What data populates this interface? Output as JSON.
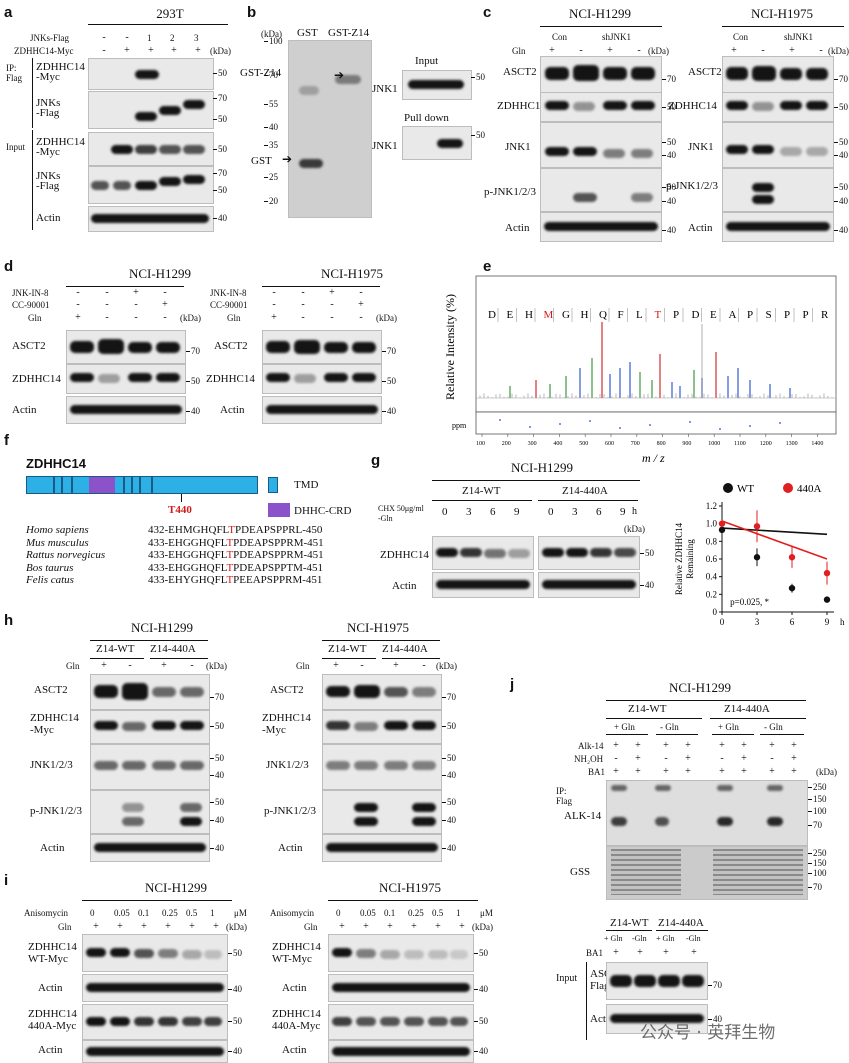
{
  "panels": {
    "a": {
      "label": "a",
      "cell": "293T",
      "rows": [
        "JNKs-Flag",
        "ZDHHC14-Myc"
      ],
      "lanes": [
        "1",
        "2",
        "3"
      ],
      "unit": "(kDa)",
      "ip": "IP:\nFlag",
      "input": "Input",
      "blots": [
        "ZDHHC14\n-Myc",
        "JNKs\n-Flag",
        "ZDHHC14\n-Myc",
        "JNKs\n-Flag",
        "Actin"
      ],
      "mw": [
        "50",
        "70",
        "50",
        "50",
        "70",
        "50",
        "40"
      ]
    },
    "b": {
      "label": "b",
      "unit": "(kDa)",
      "lanes": [
        "GST",
        "GST-Z14"
      ],
      "ladder": [
        "100",
        "70",
        "55",
        "40",
        "35",
        "25",
        "20"
      ],
      "markers": [
        "GST-Z14",
        "GST"
      ],
      "input": "Input",
      "pulldown": "Pull down",
      "target": "JNK1",
      "mw": "50"
    },
    "c": {
      "label": "c",
      "cells": [
        "NCI-H1299",
        "NCI-H1975"
      ],
      "groups": [
        "Con",
        "shJNK1"
      ],
      "gln": "Gln",
      "unit": "(kDa)",
      "blots": [
        "ASCT2",
        "ZDHHC14",
        "JNK1",
        "p-JNK1/2/3",
        "Actin"
      ],
      "mw": [
        "70",
        "50",
        "50",
        "40",
        "50",
        "40",
        "40"
      ]
    },
    "d": {
      "label": "d",
      "cells": [
        "NCI-H1299",
        "NCI-H1975"
      ],
      "rows": [
        "JNK-IN-8",
        "CC-90001",
        "Gln"
      ],
      "unit": "(kDa)",
      "blots": [
        "ASCT2",
        "ZDHHC14",
        "Actin"
      ],
      "mw": [
        "70",
        "50",
        "40"
      ]
    },
    "e": {
      "label": "e",
      "ylabel": "Relative Intensity (%)",
      "xlabel": "m / z",
      "ppm": "ppm",
      "residues": [
        "D",
        "E",
        "H",
        "M",
        "G",
        "H",
        "Q",
        "F",
        "L",
        "T",
        "P",
        "D",
        "E",
        "A",
        "P",
        "S",
        "P",
        "P",
        "R"
      ],
      "xticks": [
        "100",
        "200",
        "300",
        "400",
        "500",
        "600",
        "700",
        "800",
        "900",
        "1000",
        "1100",
        "1200",
        "1300",
        "1400"
      ]
    },
    "f": {
      "label": "f",
      "protein": "ZDHHC14",
      "site": "T440",
      "legend": [
        "TMD",
        "DHHC-CRD"
      ],
      "species": [
        {
          "name": "Homo sapiens",
          "start": "432-",
          "pre": "EHMGHQFL",
          "mid": "T",
          "post": "PDEAPSPPRL",
          "end": "-450"
        },
        {
          "name": "Mus musculus",
          "start": "433-",
          "pre": "EHGGHQFL",
          "mid": "T",
          "post": "PDEAPSPPRM",
          "end": "-451"
        },
        {
          "name": "Rattus norvegicus",
          "start": "433-",
          "pre": "EHGGHQFL",
          "mid": "T",
          "post": "PDEAPSPPRM",
          "end": "-451"
        },
        {
          "name": "Bos taurus",
          "start": "433-",
          "pre": "EHGGHQFL",
          "mid": "T",
          "post": "PDEAPSPPTM",
          "end": "-451"
        },
        {
          "name": "Felis catus",
          "start": "433-",
          "pre": "EHYGHQFL",
          "mid": "T",
          "post": "PEEAPSPPRM",
          "end": "-451"
        }
      ]
    },
    "g": {
      "label": "g",
      "cell": "NCI-H1299",
      "groups": [
        "Z14-WT",
        "Z14-440A"
      ],
      "treatment": "CHX 50μg/ml\n-Gln",
      "times": [
        "0",
        "3",
        "6",
        "9"
      ],
      "hour": "h",
      "unit": "(kDa)",
      "blots": [
        "ZDHHC14",
        "Actin"
      ],
      "mw": [
        "50",
        "40"
      ]
    },
    "h": {
      "label": "h",
      "cells": [
        "NCI-H1299",
        "NCI-H1975"
      ],
      "groups": [
        "Z14-WT",
        "Z14-440A"
      ],
      "gln": "Gln",
      "unit": "(kDa)",
      "blots": [
        "ASCT2",
        "ZDHHC14\n-Myc",
        "JNK1/2/3",
        "p-JNK1/2/3",
        "Actin"
      ],
      "mw": [
        "70",
        "50",
        "50",
        "40",
        "50",
        "40",
        "40"
      ]
    },
    "i": {
      "label": "i",
      "cells": [
        "NCI-H1299",
        "NCI-H1975"
      ],
      "rows": [
        "Anisomycin",
        "Gln"
      ],
      "doses": [
        "0",
        "0.05",
        "0.1",
        "0.25",
        "0.5",
        "1"
      ],
      "dose_unit": "μM",
      "unit": "(kDa)",
      "blots": [
        "ZDHHC14\nWT-Myc",
        "Actin",
        "ZDHHC14\n440A-Myc",
        "Actin"
      ],
      "mw": [
        "50",
        "40",
        "50",
        "40"
      ]
    },
    "j": {
      "label": "j",
      "cell": "NCI-H1299",
      "groups": [
        "Z14-WT",
        "Z14-440A"
      ],
      "subgroups": [
        "+ Gln",
        "- Gln",
        "+ Gln",
        "- Gln"
      ],
      "rows": [
        "Alk-14",
        "NH₂OH",
        "BA1"
      ],
      "unit": "(kDa)",
      "ip": "IP:\nFlag",
      "blots": [
        "ALK-14",
        "GSS"
      ],
      "mw_alk": [
        "250",
        "150",
        "100",
        "70"
      ],
      "mw_gss": [
        "250",
        "150",
        "100",
        "70"
      ],
      "input_groups": [
        "Z14-WT",
        "Z14-440A"
      ],
      "input_sub": [
        "+ Gln",
        "-Gln",
        "+ Gln",
        "-Gln"
      ],
      "input_row": "BA1",
      "input": "Input",
      "input_blots": [
        "ASCT2-\nFlag",
        "Actin"
      ],
      "input_mw": [
        "70",
        "40"
      ]
    },
    "watermark": "公众号 · 英拜生物"
  },
  "chart_data": {
    "type": "line",
    "x": [
      0,
      3,
      6,
      9
    ],
    "xlabel": "h",
    "ylabel": "Relative ZDHHC14\nRemaining",
    "ylim": [
      0,
      1.2
    ],
    "yticks": [
      "0",
      "0.2",
      "0.4",
      "0.6",
      "0.8",
      "1.0",
      "1.2"
    ],
    "xticks": [
      "0",
      "3",
      "6",
      "9"
    ],
    "series": [
      {
        "name": "WT",
        "color": "#111111",
        "values": [
          0.93,
          0.62,
          0.27,
          0.14
        ],
        "err": [
          0.05,
          0.1,
          0.05,
          0.02
        ],
        "fit": [
          0.95,
          0.07
        ]
      },
      {
        "name": "440A",
        "color": "#e02020",
        "values": [
          1.0,
          0.97,
          0.62,
          0.44
        ],
        "err": [
          0.04,
          0.18,
          0.12,
          0.13
        ],
        "fit": [
          1.03,
          0.43
        ]
      }
    ],
    "legend": "top",
    "annotation": "p=0.025, *"
  }
}
